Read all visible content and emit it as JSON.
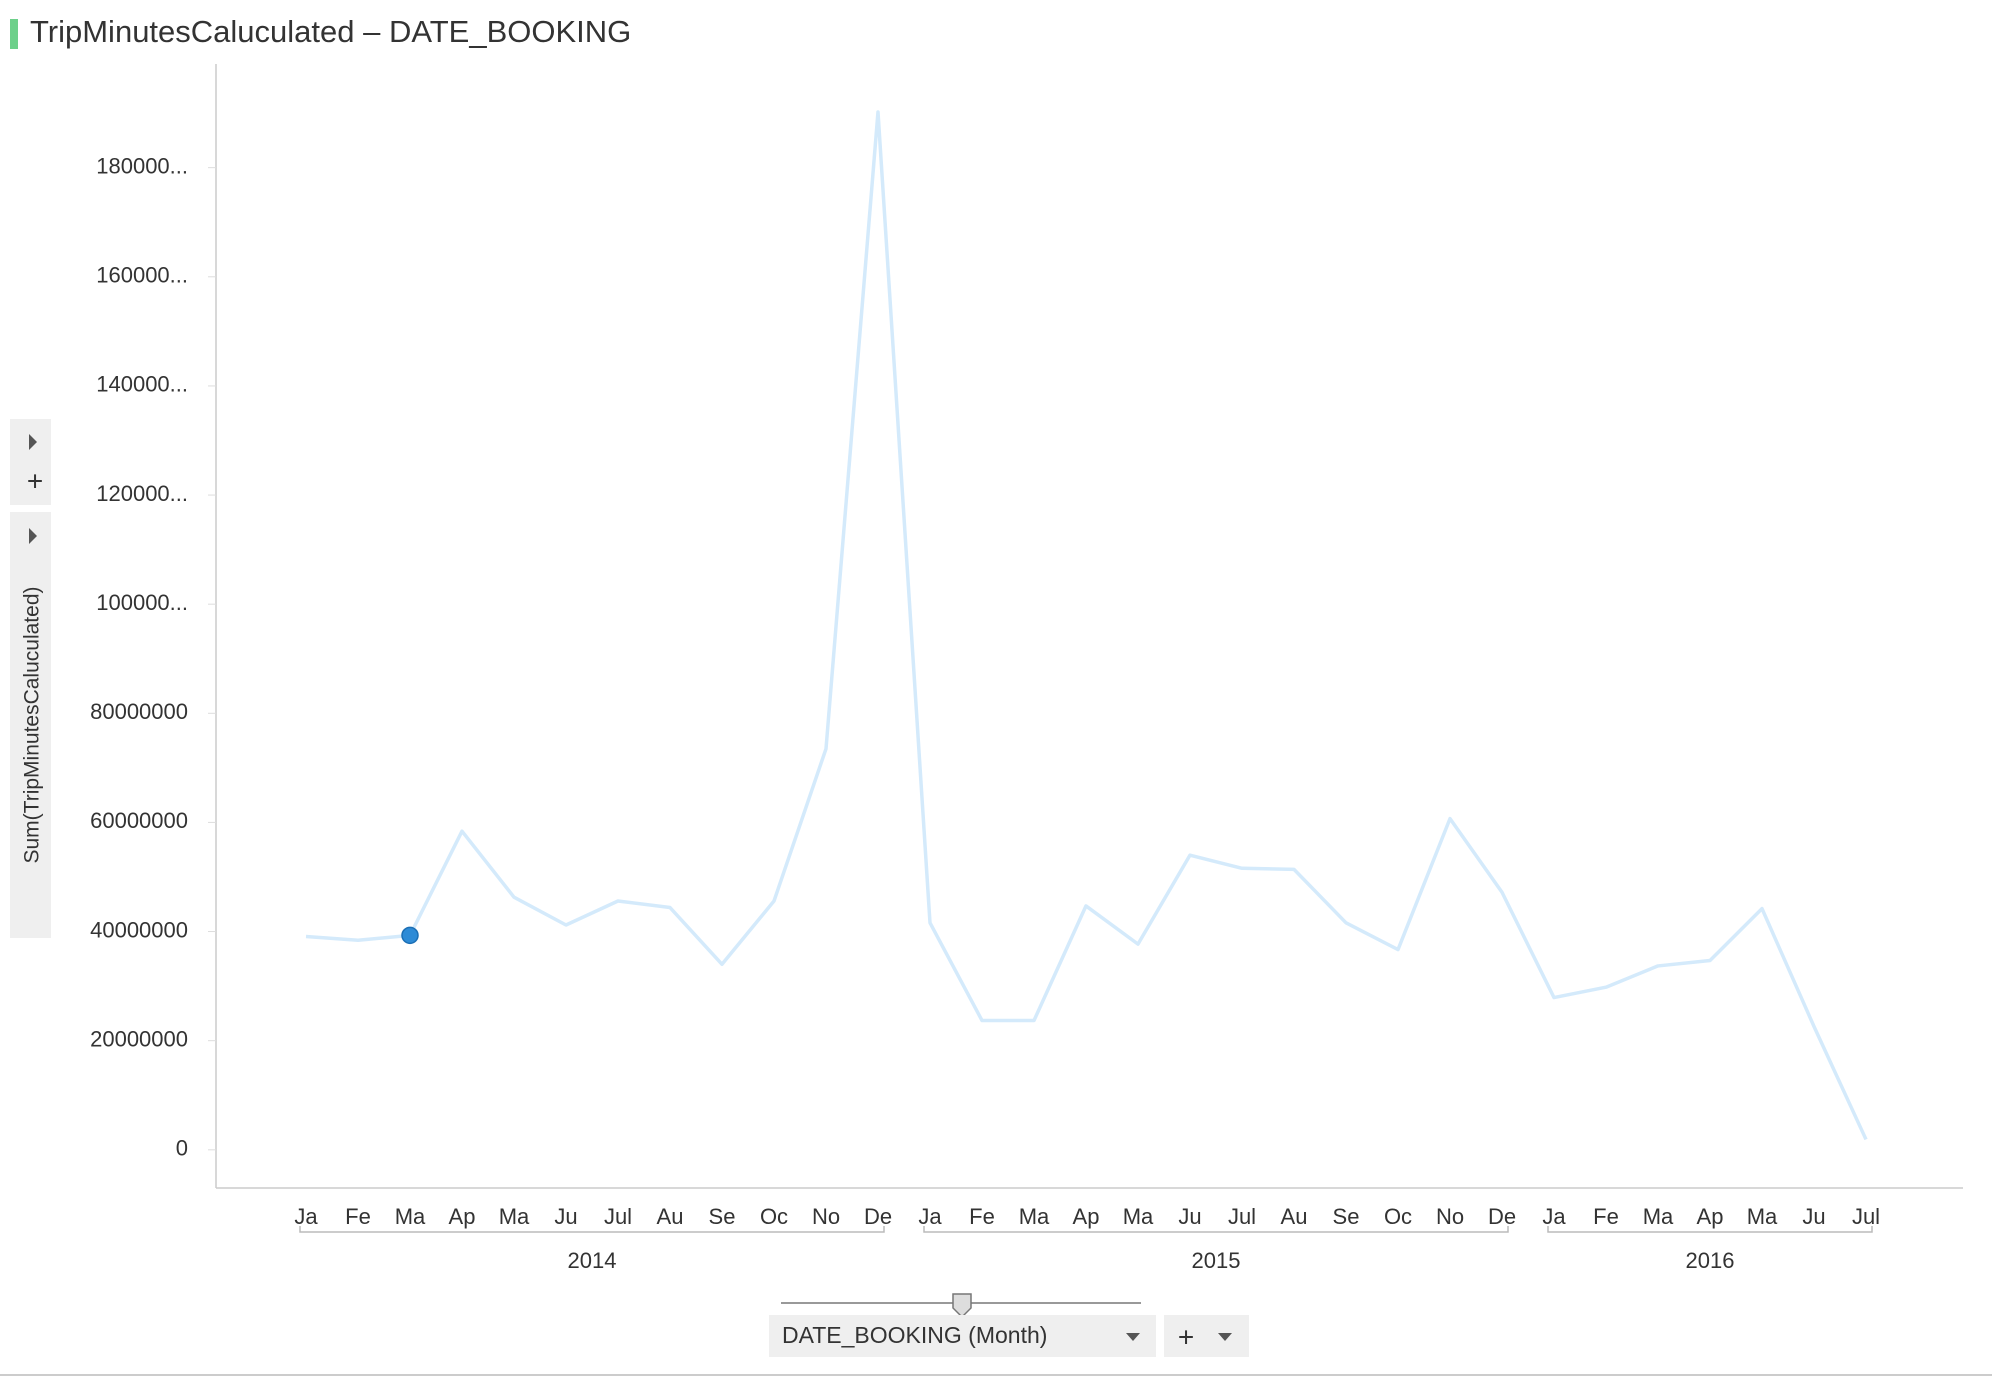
{
  "chart_data": {
    "type": "line",
    "title": "TripMinutesCaluculated – DATE_BOOKING",
    "y_label": "Sum(TripMinutesCaluculated)",
    "category_groups": [
      {
        "name": "2014",
        "categories": [
          "Ja",
          "Fe",
          "Ma",
          "Ap",
          "Ma",
          "Ju",
          "Jul",
          "Au",
          "Se",
          "Oc",
          "No",
          "De"
        ]
      },
      {
        "name": "2015",
        "categories": [
          "Ja",
          "Fe",
          "Ma",
          "Ap",
          "Ma",
          "Ju",
          "Jul",
          "Au",
          "Se",
          "Oc",
          "No",
          "De"
        ]
      },
      {
        "name": "2016",
        "categories": [
          "Ja",
          "Fe",
          "Ma",
          "Ap",
          "Ma",
          "Ju",
          "Jul"
        ]
      }
    ],
    "series": [
      {
        "name": "Sum(TripMinutesCaluculated)",
        "color": "#d4eafb",
        "values": [
          39100000,
          38400000,
          39300000,
          58400000,
          46300000,
          41200000,
          45600000,
          44400000,
          34000000,
          45600000,
          73500000,
          190200000,
          41600000,
          23700000,
          23700000,
          44700000,
          37700000,
          54000000,
          51600000,
          51400000,
          41600000,
          36700000,
          60700000,
          47200000,
          27900000,
          29800000,
          33700000,
          34700000,
          44200000,
          22600000,
          1900000
        ]
      }
    ],
    "marker": {
      "index": 2,
      "color": "#2e8bd6"
    },
    "ylim": [
      -7000000,
      199000000
    ],
    "yticks": [
      0,
      20000000,
      40000000,
      60000000,
      80000000,
      {
        "value": 100000000,
        "label": "100000..."
      },
      {
        "value": 120000000,
        "label": "120000..."
      },
      {
        "value": 140000000,
        "label": "140000..."
      },
      {
        "value": 160000000,
        "label": "160000..."
      },
      {
        "value": 180000000,
        "label": "180000..."
      }
    ],
    "grid": false
  },
  "ui": {
    "x_selector": "DATE_BOOKING (Month)",
    "add_button": "+",
    "y_add_button": "+"
  }
}
